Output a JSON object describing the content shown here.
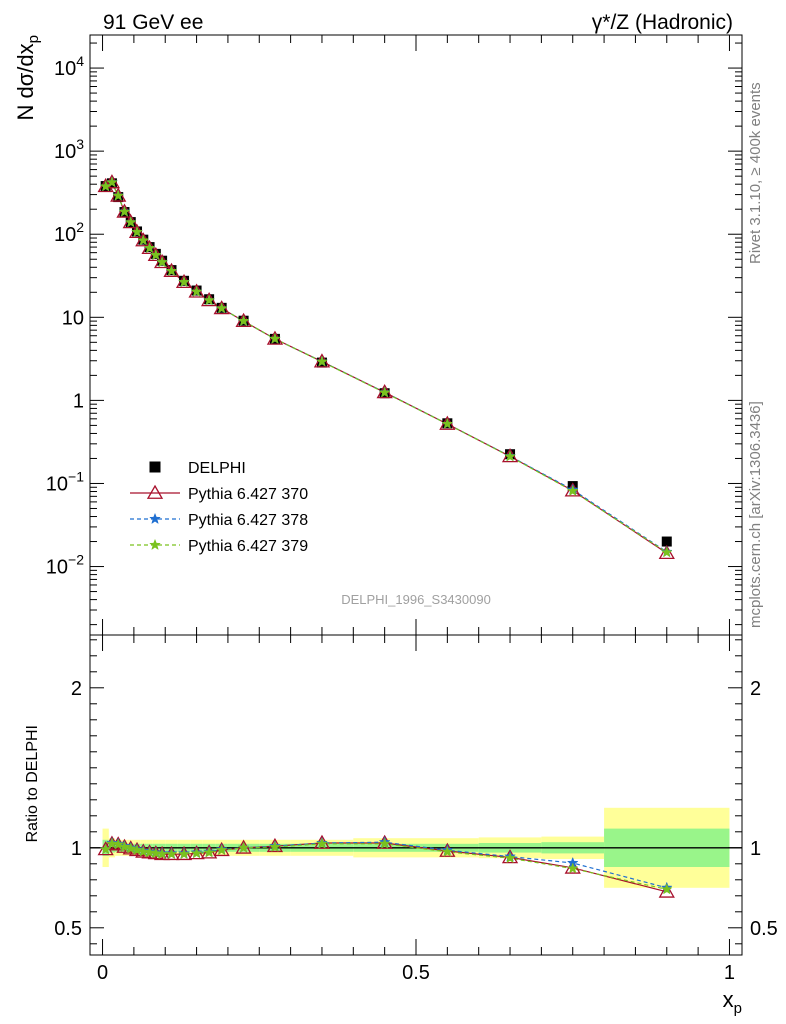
{
  "header": {
    "left_title": "91 GeV ee",
    "right_title": "γ*/Z (Hadronic)"
  },
  "side_text": {
    "rivet": "Rivet 3.1.10, ≥ 400k events",
    "mcplots": "mcplots.cern.ch [arXiv:1306.3436]"
  },
  "watermark": "DELPHI_1996_S3430090",
  "chart_data": [
    {
      "type": "scatter",
      "panel": "main",
      "ylabel": "N dσ/dx_p",
      "yscale": "log",
      "ylim": [
        0.0015,
        25000
      ],
      "xlim": [
        -0.02,
        1.02
      ],
      "y_tick_labels": [
        "10^4",
        "10^3",
        "10^2",
        "10",
        "1",
        "10^-1",
        "10^-2"
      ],
      "legend_position": "lower-left",
      "x": [
        0.005,
        0.015,
        0.025,
        0.035,
        0.045,
        0.055,
        0.065,
        0.075,
        0.085,
        0.095,
        0.11,
        0.13,
        0.15,
        0.17,
        0.19,
        0.225,
        0.275,
        0.35,
        0.45,
        0.55,
        0.65,
        0.75,
        0.9
      ],
      "series": [
        {
          "name": "DELPHI",
          "color": "#000000",
          "marker": "square",
          "values": [
            380,
            410,
            280,
            185,
            140,
            108,
            86,
            70,
            58,
            48,
            37,
            27.5,
            21,
            16.5,
            13,
            9.1,
            5.5,
            2.85,
            1.22,
            0.53,
            0.225,
            0.093,
            0.02
          ]
        },
        {
          "name": "Pythia 6.427 370",
          "color": "#a8102c",
          "marker": "triangle",
          "dash": "solid",
          "values": [
            378,
            420,
            290,
            186,
            139,
            106,
            84,
            68,
            56,
            46,
            36,
            26.5,
            20.3,
            16,
            12.8,
            9.0,
            5.5,
            2.93,
            1.25,
            0.52,
            0.212,
            0.082,
            0.0145
          ]
        },
        {
          "name": "Pythia 6.427 378",
          "color": "#1f6fd1",
          "marker": "star",
          "dash": "dashed",
          "values": [
            376,
            422,
            291,
            187,
            139,
            106,
            84,
            68,
            56,
            46,
            36,
            26.5,
            20.3,
            16,
            12.8,
            9.0,
            5.5,
            2.93,
            1.25,
            0.52,
            0.213,
            0.084,
            0.015
          ]
        },
        {
          "name": "Pythia 6.427 379",
          "color": "#7ac21e",
          "marker": "star",
          "dash": "dashed",
          "values": [
            376,
            420,
            290,
            186,
            139,
            106,
            84,
            68,
            56,
            46,
            36,
            26.5,
            20.3,
            16,
            12.8,
            9.0,
            5.5,
            2.92,
            1.24,
            0.52,
            0.211,
            0.081,
            0.0148
          ]
        }
      ]
    },
    {
      "type": "line",
      "panel": "ratio",
      "ylabel": "Ratio to DELPHI",
      "xlabel": "x_p",
      "ylim": [
        0.33,
        2.33
      ],
      "xlim": [
        -0.02,
        1.02
      ],
      "y_ticks": [
        0.5,
        1,
        2
      ],
      "x_ticks": [
        0,
        0.5,
        1
      ],
      "x": [
        0.005,
        0.015,
        0.025,
        0.035,
        0.045,
        0.055,
        0.065,
        0.075,
        0.085,
        0.095,
        0.11,
        0.13,
        0.15,
        0.17,
        0.19,
        0.225,
        0.275,
        0.35,
        0.45,
        0.55,
        0.65,
        0.75,
        0.9
      ],
      "bands": {
        "bin_edges": [
          0,
          0.01,
          0.02,
          0.03,
          0.04,
          0.05,
          0.06,
          0.07,
          0.08,
          0.09,
          0.1,
          0.12,
          0.14,
          0.16,
          0.18,
          0.2,
          0.25,
          0.3,
          0.4,
          0.5,
          0.6,
          0.7,
          0.8,
          1.0
        ],
        "stat_halfwidth": [
          0.05,
          0.03,
          0.025,
          0.025,
          0.025,
          0.025,
          0.025,
          0.025,
          0.025,
          0.025,
          0.025,
          0.025,
          0.025,
          0.025,
          0.025,
          0.025,
          0.025,
          0.025,
          0.025,
          0.025,
          0.03,
          0.035,
          0.12
        ],
        "total_halfwidth": [
          0.12,
          0.06,
          0.05,
          0.05,
          0.05,
          0.05,
          0.05,
          0.05,
          0.05,
          0.05,
          0.05,
          0.05,
          0.05,
          0.05,
          0.05,
          0.05,
          0.05,
          0.05,
          0.06,
          0.06,
          0.065,
          0.07,
          0.25
        ],
        "stat_color": "#99f58a",
        "total_color": "#ffff99"
      },
      "series": [
        {
          "name": "Pythia 6.427 370",
          "color": "#a8102c",
          "values": [
            0.99,
            1.025,
            1.02,
            1.005,
            0.995,
            0.985,
            0.975,
            0.97,
            0.965,
            0.96,
            0.96,
            0.96,
            0.965,
            0.97,
            0.985,
            1.0,
            1.01,
            1.03,
            1.03,
            0.98,
            0.94,
            0.875,
            0.725
          ]
        },
        {
          "name": "Pythia 6.427 378",
          "color": "#1f6fd1",
          "values": [
            0.99,
            1.03,
            1.025,
            1.01,
            1.0,
            0.99,
            0.98,
            0.975,
            0.97,
            0.965,
            0.965,
            0.965,
            0.97,
            0.975,
            0.99,
            1.0,
            1.01,
            1.03,
            1.035,
            0.985,
            0.945,
            0.905,
            0.75
          ]
        },
        {
          "name": "Pythia 6.427 379",
          "color": "#7ac21e",
          "values": [
            0.99,
            1.025,
            1.02,
            1.005,
            0.995,
            0.985,
            0.975,
            0.97,
            0.965,
            0.96,
            0.96,
            0.96,
            0.965,
            0.97,
            0.985,
            1.0,
            1.005,
            1.025,
            1.025,
            0.975,
            0.935,
            0.87,
            0.74
          ]
        }
      ]
    }
  ]
}
